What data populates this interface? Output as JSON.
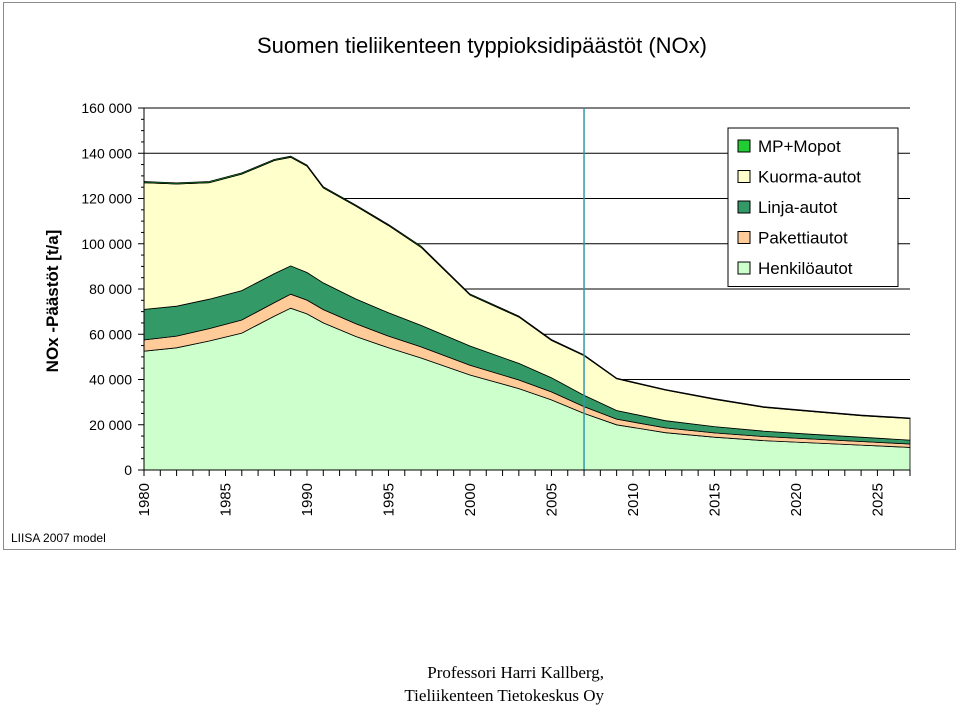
{
  "colors": {
    "mp_mopot": "#22cc33",
    "kuorma": "#ffffcc",
    "linja": "#339966",
    "paketti": "#ffcc99",
    "henkilo": "#ccffcc",
    "now_line": "#3399aa"
  },
  "chart_data": {
    "type": "area",
    "stacked": true,
    "title": "Suomen tieliikenteen typpioksidipäästöt (NOx)",
    "xlabel": "",
    "ylabel": "NOx -Päästöt [t/a]",
    "xlim": [
      1980,
      2027
    ],
    "ylim": [
      0,
      160000
    ],
    "grid": true,
    "legend_position": "top-right",
    "x_ticks": [
      1980,
      1985,
      1990,
      1995,
      2000,
      2005,
      2010,
      2015,
      2020,
      2025
    ],
    "y_ticks": [
      0,
      20000,
      40000,
      60000,
      80000,
      100000,
      120000,
      140000,
      160000
    ],
    "y_tick_labels": [
      "0",
      "20 000",
      "40 000",
      "60 000",
      "80 000",
      "100 000",
      "120 000",
      "140 000",
      "160 000"
    ],
    "vertical_marker_x": 2007,
    "x": [
      1980,
      1982,
      1984,
      1986,
      1988,
      1989,
      1990,
      1991,
      1993,
      1995,
      1997,
      2000,
      2003,
      2005,
      2007,
      2009,
      2012,
      2015,
      2018,
      2021,
      2024,
      2027
    ],
    "series": [
      {
        "name": "Henkilöautot",
        "values": [
          52500,
          54000,
          57000,
          60500,
          68000,
          71500,
          69000,
          65000,
          59000,
          54000,
          49500,
          42000,
          36000,
          31000,
          25000,
          20000,
          16500,
          14500,
          13000,
          12000,
          11000,
          10000
        ]
      },
      {
        "name": "Pakettiautot",
        "values": [
          5000,
          5200,
          5500,
          5800,
          6000,
          6200,
          6100,
          5900,
          5600,
          5200,
          4900,
          4300,
          3800,
          3500,
          3000,
          2500,
          2100,
          1900,
          1800,
          1700,
          1600,
          1500
        ]
      },
      {
        "name": "Linja-autot",
        "values": [
          13500,
          13200,
          13000,
          13000,
          12800,
          12500,
          12200,
          11800,
          11000,
          10300,
          9500,
          8500,
          7300,
          6300,
          5000,
          3800,
          3200,
          2800,
          2400,
          2100,
          1900,
          1700
        ]
      },
      {
        "name": "Kuorma-autot",
        "values": [
          56000,
          54000,
          51500,
          51500,
          50000,
          48000,
          47000,
          42000,
          41000,
          38500,
          34500,
          22500,
          20500,
          16500,
          17500,
          14000,
          13500,
          12000,
          10500,
          10000,
          9500,
          9500
        ]
      },
      {
        "name": "MP+Mopot",
        "values": [
          500,
          500,
          500,
          500,
          500,
          500,
          500,
          500,
          500,
          500,
          500,
          500,
          400,
          400,
          400,
          300,
          300,
          300,
          300,
          300,
          300,
          300
        ]
      }
    ],
    "legend_order": [
      "MP+Mopot",
      "Kuorma-autot",
      "Linja-autot",
      "Pakettiautot",
      "Henkilöautot"
    ]
  },
  "model_note": "LIISA 2007 model",
  "credit": {
    "line1": "Professori Harri Kallberg,",
    "line2": "Tieliikenteen Tietokeskus Oy"
  }
}
